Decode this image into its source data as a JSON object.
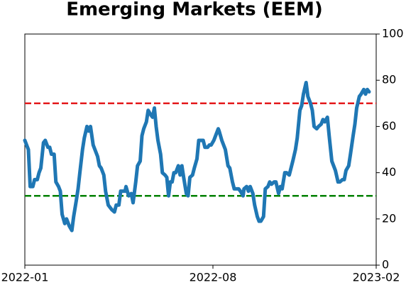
{
  "chart_data": {
    "type": "line",
    "title": "Emerging Markets (EEM)",
    "x": [
      0,
      4,
      6,
      9,
      11,
      14,
      16,
      18,
      21,
      23,
      26,
      28,
      30,
      33,
      35,
      38,
      40,
      42,
      45,
      47,
      50,
      53,
      55,
      58,
      60,
      62,
      65,
      67,
      70,
      72,
      74,
      77,
      79,
      82,
      84,
      86,
      89,
      91,
      94,
      96,
      98,
      101,
      103,
      106,
      108,
      110,
      113,
      114,
      117,
      120,
      122,
      125,
      127,
      130,
      132,
      134,
      137,
      139,
      142,
      144,
      146,
      148,
      150,
      153,
      155,
      158,
      160,
      162,
      164,
      166,
      168,
      170,
      173,
      175,
      177,
      179,
      182,
      184,
      186,
      189,
      191,
      194,
      196,
      198,
      201,
      203,
      206,
      208,
      210,
      213,
      215,
      218,
      219,
      222,
      224,
      226,
      229,
      231,
      234,
      236,
      238,
      241,
      243,
      246,
      247,
      250,
      252,
      254,
      257,
      259,
      262,
      264,
      266,
      269,
      271,
      274,
      276,
      278,
      281,
      283,
      286,
      288,
      290,
      293,
      295,
      298,
      300,
      302,
      305,
      307,
      310,
      312,
      314,
      317,
      319,
      322,
      324,
      326,
      329,
      331,
      334,
      336,
      338,
      341,
      343,
      346,
      348,
      350,
      353,
      355,
      358,
      360,
      362,
      365,
      367,
      370,
      372,
      374,
      377,
      379,
      382,
      384,
      386,
      388
    ],
    "series": [
      {
        "color": "#1f77b4",
        "values": [
          54,
          50,
          34,
          34,
          37,
          37,
          40,
          42,
          53,
          54,
          51,
          51,
          48,
          48,
          36,
          34,
          32,
          22,
          18,
          20,
          17,
          15,
          21,
          28,
          33,
          40,
          50,
          55,
          60,
          58,
          60,
          52,
          50,
          47,
          43,
          42,
          39,
          32,
          26,
          25,
          24,
          23,
          26,
          26,
          32,
          32,
          32,
          34,
          30,
          31,
          27,
          36,
          43,
          45,
          56,
          59,
          62,
          67,
          65,
          64,
          68,
          60,
          54,
          48,
          40,
          39,
          38,
          30,
          36,
          36,
          40,
          40,
          43,
          39,
          43,
          38,
          31,
          30,
          38,
          39,
          42,
          46,
          54,
          54,
          54,
          51,
          51,
          52,
          52,
          54,
          56,
          59,
          58,
          54,
          52,
          50,
          43,
          42,
          36,
          33,
          33,
          33,
          32,
          30,
          33,
          34,
          32,
          34,
          31,
          26,
          21,
          19,
          19,
          21,
          33,
          34,
          36,
          35,
          36,
          36,
          31,
          34,
          33,
          40,
          40,
          39,
          42,
          45,
          50,
          55,
          67,
          69,
          74,
          79,
          73,
          70,
          67,
          60,
          59,
          60,
          61,
          63,
          62,
          64,
          56,
          45,
          43,
          41,
          36,
          36,
          37,
          37,
          41,
          43,
          48,
          56,
          61,
          68,
          73,
          74,
          76,
          74,
          76,
          75
        ]
      }
    ],
    "xlim": [
      0,
      396
    ],
    "xticks": [
      {
        "value": 0,
        "label": "2022-01"
      },
      {
        "value": 212,
        "label": "2022-08"
      },
      {
        "value": 396,
        "label": "2023-02"
      }
    ],
    "ylim": [
      0,
      100
    ],
    "yticks": [
      0,
      20,
      40,
      60,
      80,
      100
    ],
    "reference_lines": [
      {
        "value": 70,
        "color": "#e41a1c"
      },
      {
        "value": 30,
        "color": "#008000"
      }
    ]
  }
}
